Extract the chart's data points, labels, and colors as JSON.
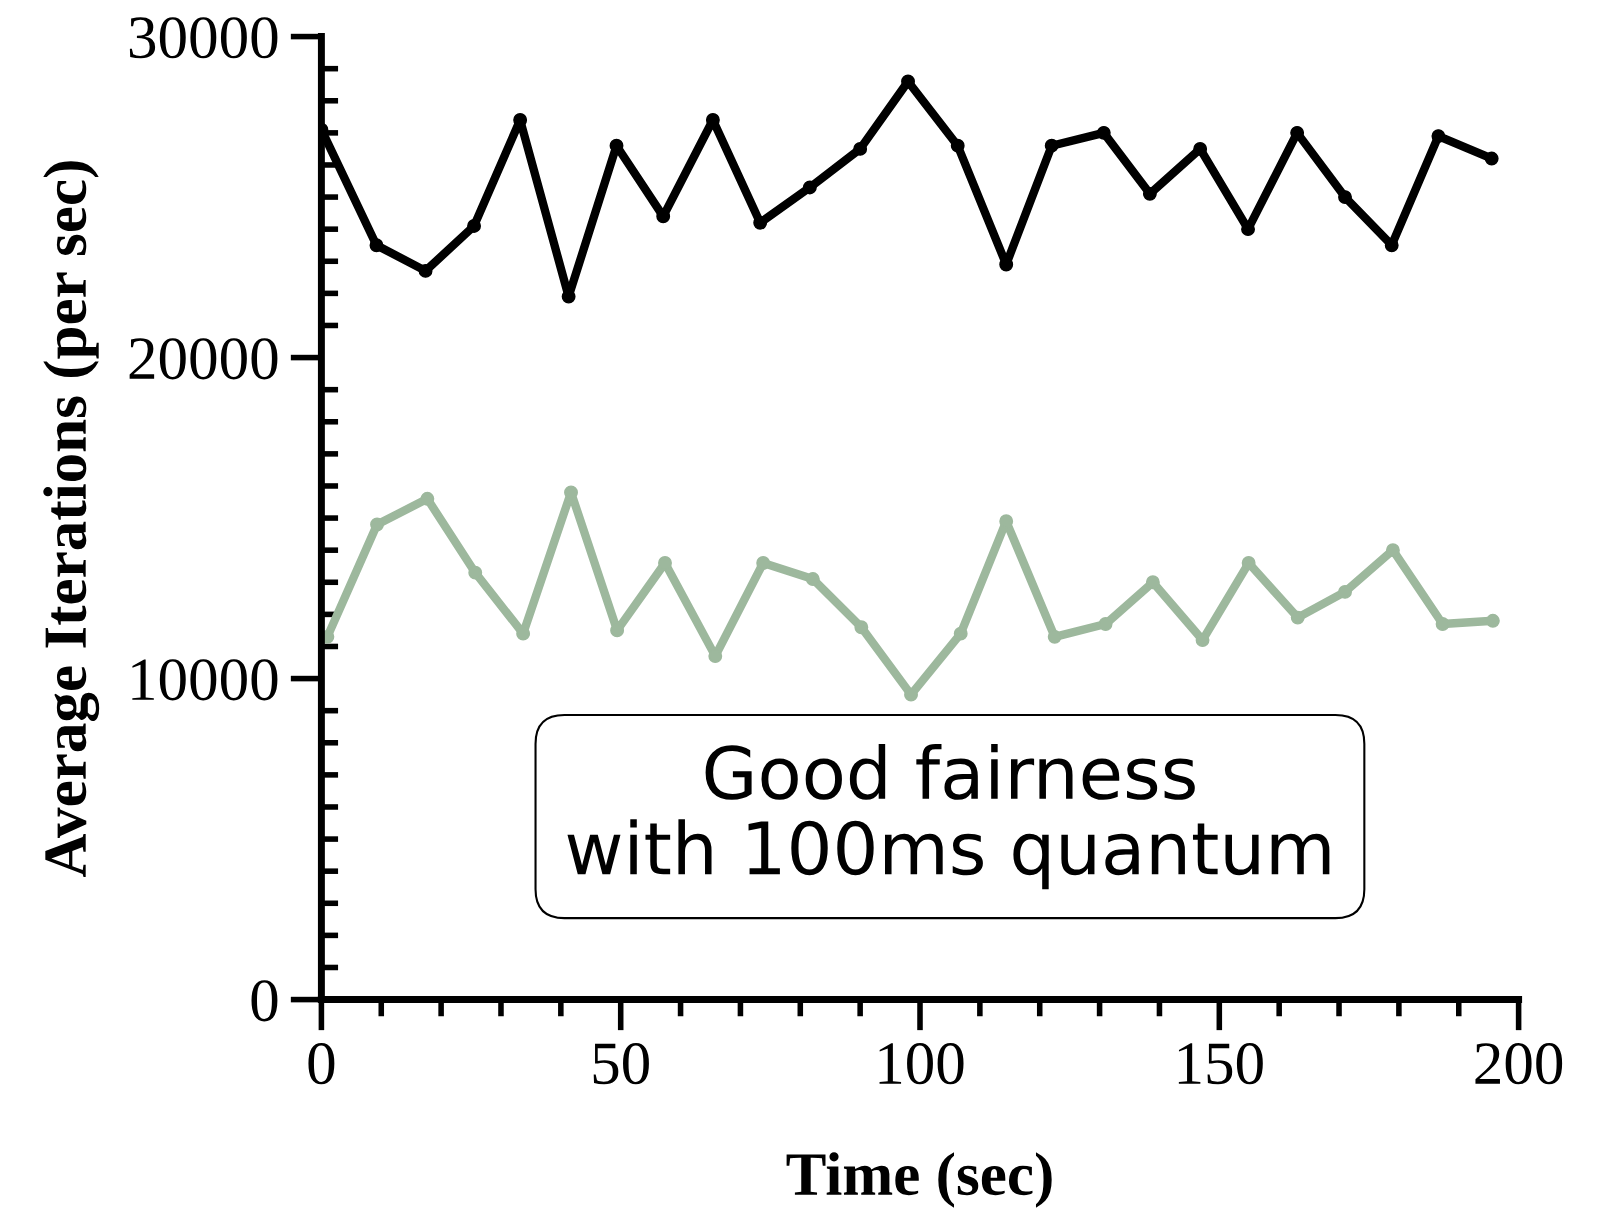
{
  "chart_data": {
    "type": "line",
    "xlabel": "Time (sec)",
    "ylabel": "Average Iterations (per sec)",
    "xlim": [
      0,
      200
    ],
    "xticks": [
      0,
      50,
      100,
      150,
      200
    ],
    "ylim": [
      0,
      30000
    ],
    "yticks": [
      0,
      10000,
      20000,
      30000
    ],
    "grid": false,
    "legend": false,
    "marker": "circle",
    "line_style": "solid",
    "annotations": [
      "Good fairness with 100ms quantum"
    ],
    "series": [
      {
        "color": "#000000",
        "x": [
          0,
          9.2,
          17.4,
          25.5,
          33.2,
          41.3,
          49.3,
          57.1,
          65.4,
          73.3,
          81.6,
          90,
          98,
          106.3,
          114.4,
          122,
          130.7,
          138.4,
          146.8,
          154.8,
          163,
          171,
          178.8,
          186.6,
          195.5
        ],
        "values": [
          27100,
          23500,
          22700,
          24100,
          27400,
          21900,
          26600,
          24400,
          27400,
          24200,
          25300,
          26500,
          28600,
          26600,
          22900,
          26600,
          27000,
          25100,
          26500,
          24000,
          27000,
          25000,
          23500,
          26900,
          26200
        ]
      },
      {
        "color": "#9db89d",
        "x": [
          1,
          9.3,
          17.7,
          25.7,
          33.7,
          41.7,
          49.4,
          57.4,
          65.8,
          73.8,
          82.1,
          90.2,
          98.5,
          106.8,
          114.4,
          122.5,
          131,
          138.9,
          147.2,
          154.9,
          163.1,
          171,
          179,
          187.3,
          195.7
        ],
        "values": [
          11300,
          14800,
          15600,
          13300,
          11400,
          15800,
          11500,
          13600,
          10700,
          13600,
          13100,
          11600,
          9500,
          11400,
          14900,
          11300,
          11700,
          13000,
          11200,
          13600,
          11900,
          12700,
          14000,
          11700,
          11800
        ]
      }
    ]
  }
}
